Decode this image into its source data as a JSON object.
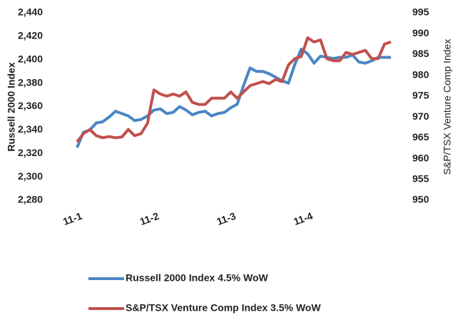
{
  "chart_data": {
    "type": "line",
    "categories": [
      "11-1",
      null,
      null,
      null,
      null,
      null,
      null,
      null,
      null,
      null,
      null,
      null,
      "11-2",
      null,
      null,
      null,
      null,
      null,
      null,
      null,
      null,
      null,
      null,
      null,
      "11-3",
      null,
      null,
      null,
      null,
      null,
      null,
      null,
      null,
      null,
      null,
      null,
      "11-4",
      null,
      null,
      null,
      null,
      null,
      null,
      null,
      null,
      null,
      null,
      null,
      null,
      null
    ],
    "ylabel": "Russell 2000 Index",
    "y2label": "S&P/TSX Venture Comp Index",
    "ylim": [
      2280,
      2440
    ],
    "yticks": [
      {
        "value": 2280,
        "label": "2,280"
      },
      {
        "value": 2300,
        "label": "2,300"
      },
      {
        "value": 2320,
        "label": "2,320"
      },
      {
        "value": 2340,
        "label": "2,340"
      },
      {
        "value": 2360,
        "label": "2,360"
      },
      {
        "value": 2380,
        "label": "2,380"
      },
      {
        "value": 2400,
        "label": "2,400"
      },
      {
        "value": 2420,
        "label": "2,420"
      },
      {
        "value": 2440,
        "label": "2,440"
      }
    ],
    "y2lim": [
      950,
      995
    ],
    "y2ticks": [
      950,
      955,
      960,
      965,
      970,
      975,
      980,
      985,
      990,
      995
    ],
    "legend": "bottom",
    "series": [
      {
        "name": "Russell 2000 Index 4.5% WoW",
        "color": "#4a86c5",
        "axis": "y",
        "values": [
          2325,
          2338,
          2340,
          2346,
          2347,
          2351,
          2356,
          2354,
          2352,
          2348,
          2349,
          2352,
          2357,
          2358,
          2354,
          2355,
          2360,
          2357,
          2353,
          2355,
          2356,
          2352,
          2354,
          2355,
          2359,
          2362,
          2378,
          2393,
          2390,
          2390,
          2388,
          2385,
          2382,
          2380,
          2396,
          2409,
          2405,
          2397,
          2403,
          2402,
          2401,
          2402,
          2402,
          2404,
          2398,
          2397,
          2399,
          2402,
          2402,
          2402
        ]
      },
      {
        "name": "S&P/TSX Venture Comp Index 3.5% WoW",
        "color": "#c0504d",
        "axis": "y2",
        "values": [
          964,
          966,
          967,
          965.5,
          965,
          965.3,
          965,
          965.2,
          967,
          965.5,
          966,
          968.5,
          976.5,
          975.5,
          975,
          975.5,
          975,
          976,
          973.5,
          973,
          973,
          974.5,
          974.5,
          974.5,
          976,
          974.5,
          976,
          977.5,
          978,
          978.5,
          978,
          979,
          978.5,
          982.5,
          984,
          984.5,
          989,
          988,
          988.5,
          984,
          983.5,
          983.5,
          985.5,
          985,
          985.5,
          986,
          984,
          984,
          987.5,
          988
        ]
      }
    ]
  }
}
